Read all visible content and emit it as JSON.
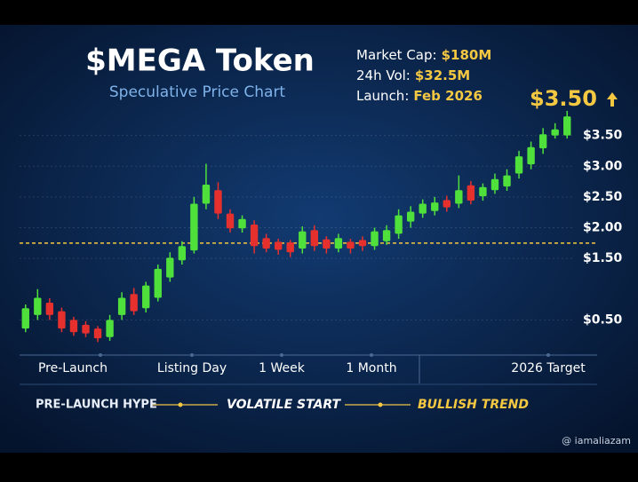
{
  "chart_data": {
    "type": "candlestick",
    "title": "$MEGA Token",
    "subtitle": "Speculative Price Chart",
    "info": [
      {
        "label": "Market Cap:",
        "value": "$180M"
      },
      {
        "label": "24h Vol:",
        "value": "$32.5M"
      },
      {
        "label": "Launch:",
        "value": "Feb 2026"
      }
    ],
    "annotation": "$3.50",
    "open": [
      0.36,
      0.58,
      0.78,
      0.64,
      0.5,
      0.42,
      0.36,
      0.22,
      0.58,
      0.92,
      0.69,
      0.86,
      1.19,
      1.47,
      1.63,
      2.39,
      2.61,
      2.23,
      1.99,
      2.05,
      1.83,
      1.77,
      1.76,
      1.66,
      1.96,
      1.81,
      1.66,
      1.77,
      1.8,
      1.7,
      1.78,
      1.9,
      2.1,
      2.23,
      2.27,
      2.45,
      2.39,
      2.69,
      2.51,
      2.61,
      2.67,
      2.88,
      3.03,
      3.29,
      3.5,
      3.5
    ],
    "high": [
      0.75,
      1.0,
      0.85,
      0.7,
      0.55,
      0.48,
      0.4,
      0.58,
      0.95,
      1.02,
      1.12,
      1.4,
      1.6,
      1.78,
      2.5,
      3.04,
      2.74,
      2.3,
      2.2,
      2.12,
      1.9,
      1.82,
      1.8,
      2.02,
      2.04,
      1.86,
      1.9,
      1.82,
      1.86,
      2.0,
      2.04,
      2.3,
      2.35,
      2.46,
      2.5,
      2.52,
      2.85,
      2.76,
      2.72,
      2.88,
      2.95,
      3.25,
      3.4,
      3.62,
      3.7,
      3.9
    ],
    "low": [
      0.3,
      0.5,
      0.5,
      0.3,
      0.24,
      0.22,
      0.14,
      0.16,
      0.5,
      0.58,
      0.62,
      0.8,
      1.12,
      1.4,
      1.58,
      2.3,
      2.14,
      1.92,
      1.92,
      1.58,
      1.6,
      1.56,
      1.52,
      1.58,
      1.62,
      1.58,
      1.6,
      1.58,
      1.62,
      1.64,
      1.72,
      1.82,
      2.0,
      2.16,
      2.2,
      2.26,
      2.32,
      2.38,
      2.44,
      2.55,
      2.6,
      2.8,
      2.95,
      3.2,
      3.45,
      3.45
    ],
    "close": [
      0.69,
      0.86,
      0.58,
      0.36,
      0.3,
      0.28,
      0.2,
      0.5,
      0.86,
      0.64,
      1.06,
      1.33,
      1.51,
      1.7,
      2.39,
      2.7,
      2.23,
      1.99,
      2.14,
      1.7,
      1.66,
      1.64,
      1.6,
      1.94,
      1.7,
      1.66,
      1.83,
      1.66,
      1.7,
      1.94,
      1.96,
      2.2,
      2.26,
      2.39,
      2.41,
      2.33,
      2.61,
      2.44,
      2.66,
      2.79,
      2.85,
      3.16,
      3.31,
      3.52,
      3.6,
      3.81
    ],
    "up_color": "#4fe03c",
    "down_color": "#e5302e",
    "ylim": [
      0,
      4
    ],
    "yticks": [
      {
        "value": 0.5,
        "label": "$0.50"
      },
      {
        "value": 1.5,
        "label": "$1.50"
      },
      {
        "value": 2,
        "label": "$2.00"
      },
      {
        "value": 2.5,
        "label": "$2.50"
      },
      {
        "value": 3,
        "label": "$3.00"
      },
      {
        "value": 3.5,
        "label": "$3.50"
      }
    ],
    "grid": true,
    "reference_line": 1.75,
    "x_labels": [
      "Pre-Launch",
      "Listing Day",
      "1 Week",
      "1 Month",
      "2026 Target"
    ],
    "phases": [
      "PRE-LAUNCH HYPE",
      "VOLATILE START",
      "BULLISH TREND"
    ],
    "watermark": "@ iamaliazam"
  }
}
